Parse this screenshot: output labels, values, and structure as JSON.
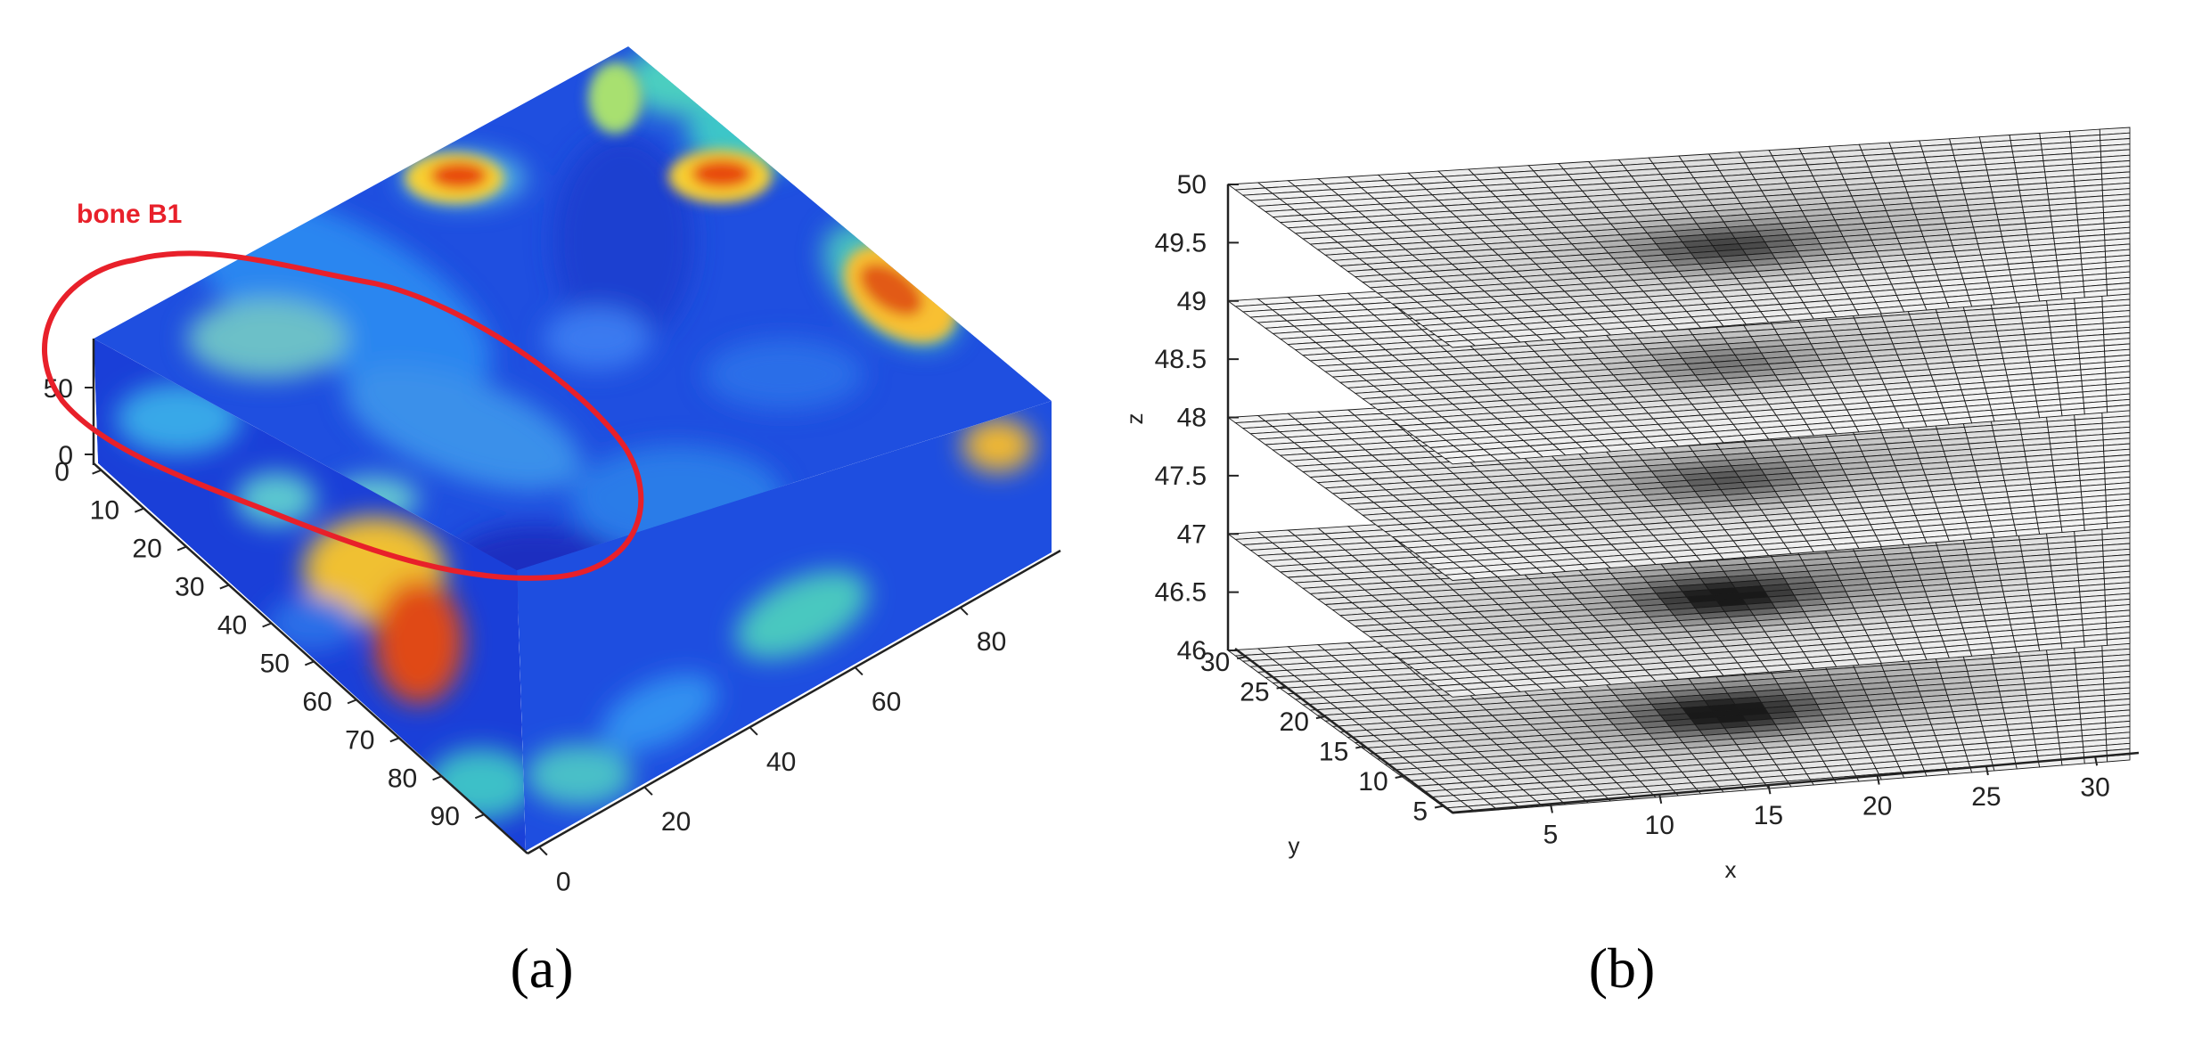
{
  "chart_data": [
    {
      "type": "heatmap",
      "panel_label": "(a)",
      "annotation": {
        "text": "bone B1",
        "color": "#e8202a"
      },
      "colormap": "jet",
      "x_ticks": [
        "0",
        "10",
        "20",
        "30",
        "40",
        "50",
        "60",
        "70",
        "80",
        "90"
      ],
      "y_ticks": [
        "0",
        "20",
        "40",
        "60",
        "80"
      ],
      "z_ticks": [
        "0",
        "50"
      ]
    },
    {
      "type": "surface",
      "panel_label": "(b)",
      "xlabel": "x",
      "ylabel": "y",
      "zlabel": "z",
      "x_ticks": [
        "5",
        "10",
        "15",
        "20",
        "25",
        "30"
      ],
      "y_ticks": [
        "5",
        "10",
        "15",
        "20",
        "25",
        "30"
      ],
      "z_ticks": [
        "46",
        "46.5",
        "47",
        "47.5",
        "48",
        "48.5",
        "49",
        "49.5",
        "50"
      ],
      "zlim": [
        46,
        50
      ],
      "slice_levels": [
        46,
        47,
        48,
        49,
        50
      ],
      "grid_cells": 30,
      "colormap": "gray"
    }
  ]
}
